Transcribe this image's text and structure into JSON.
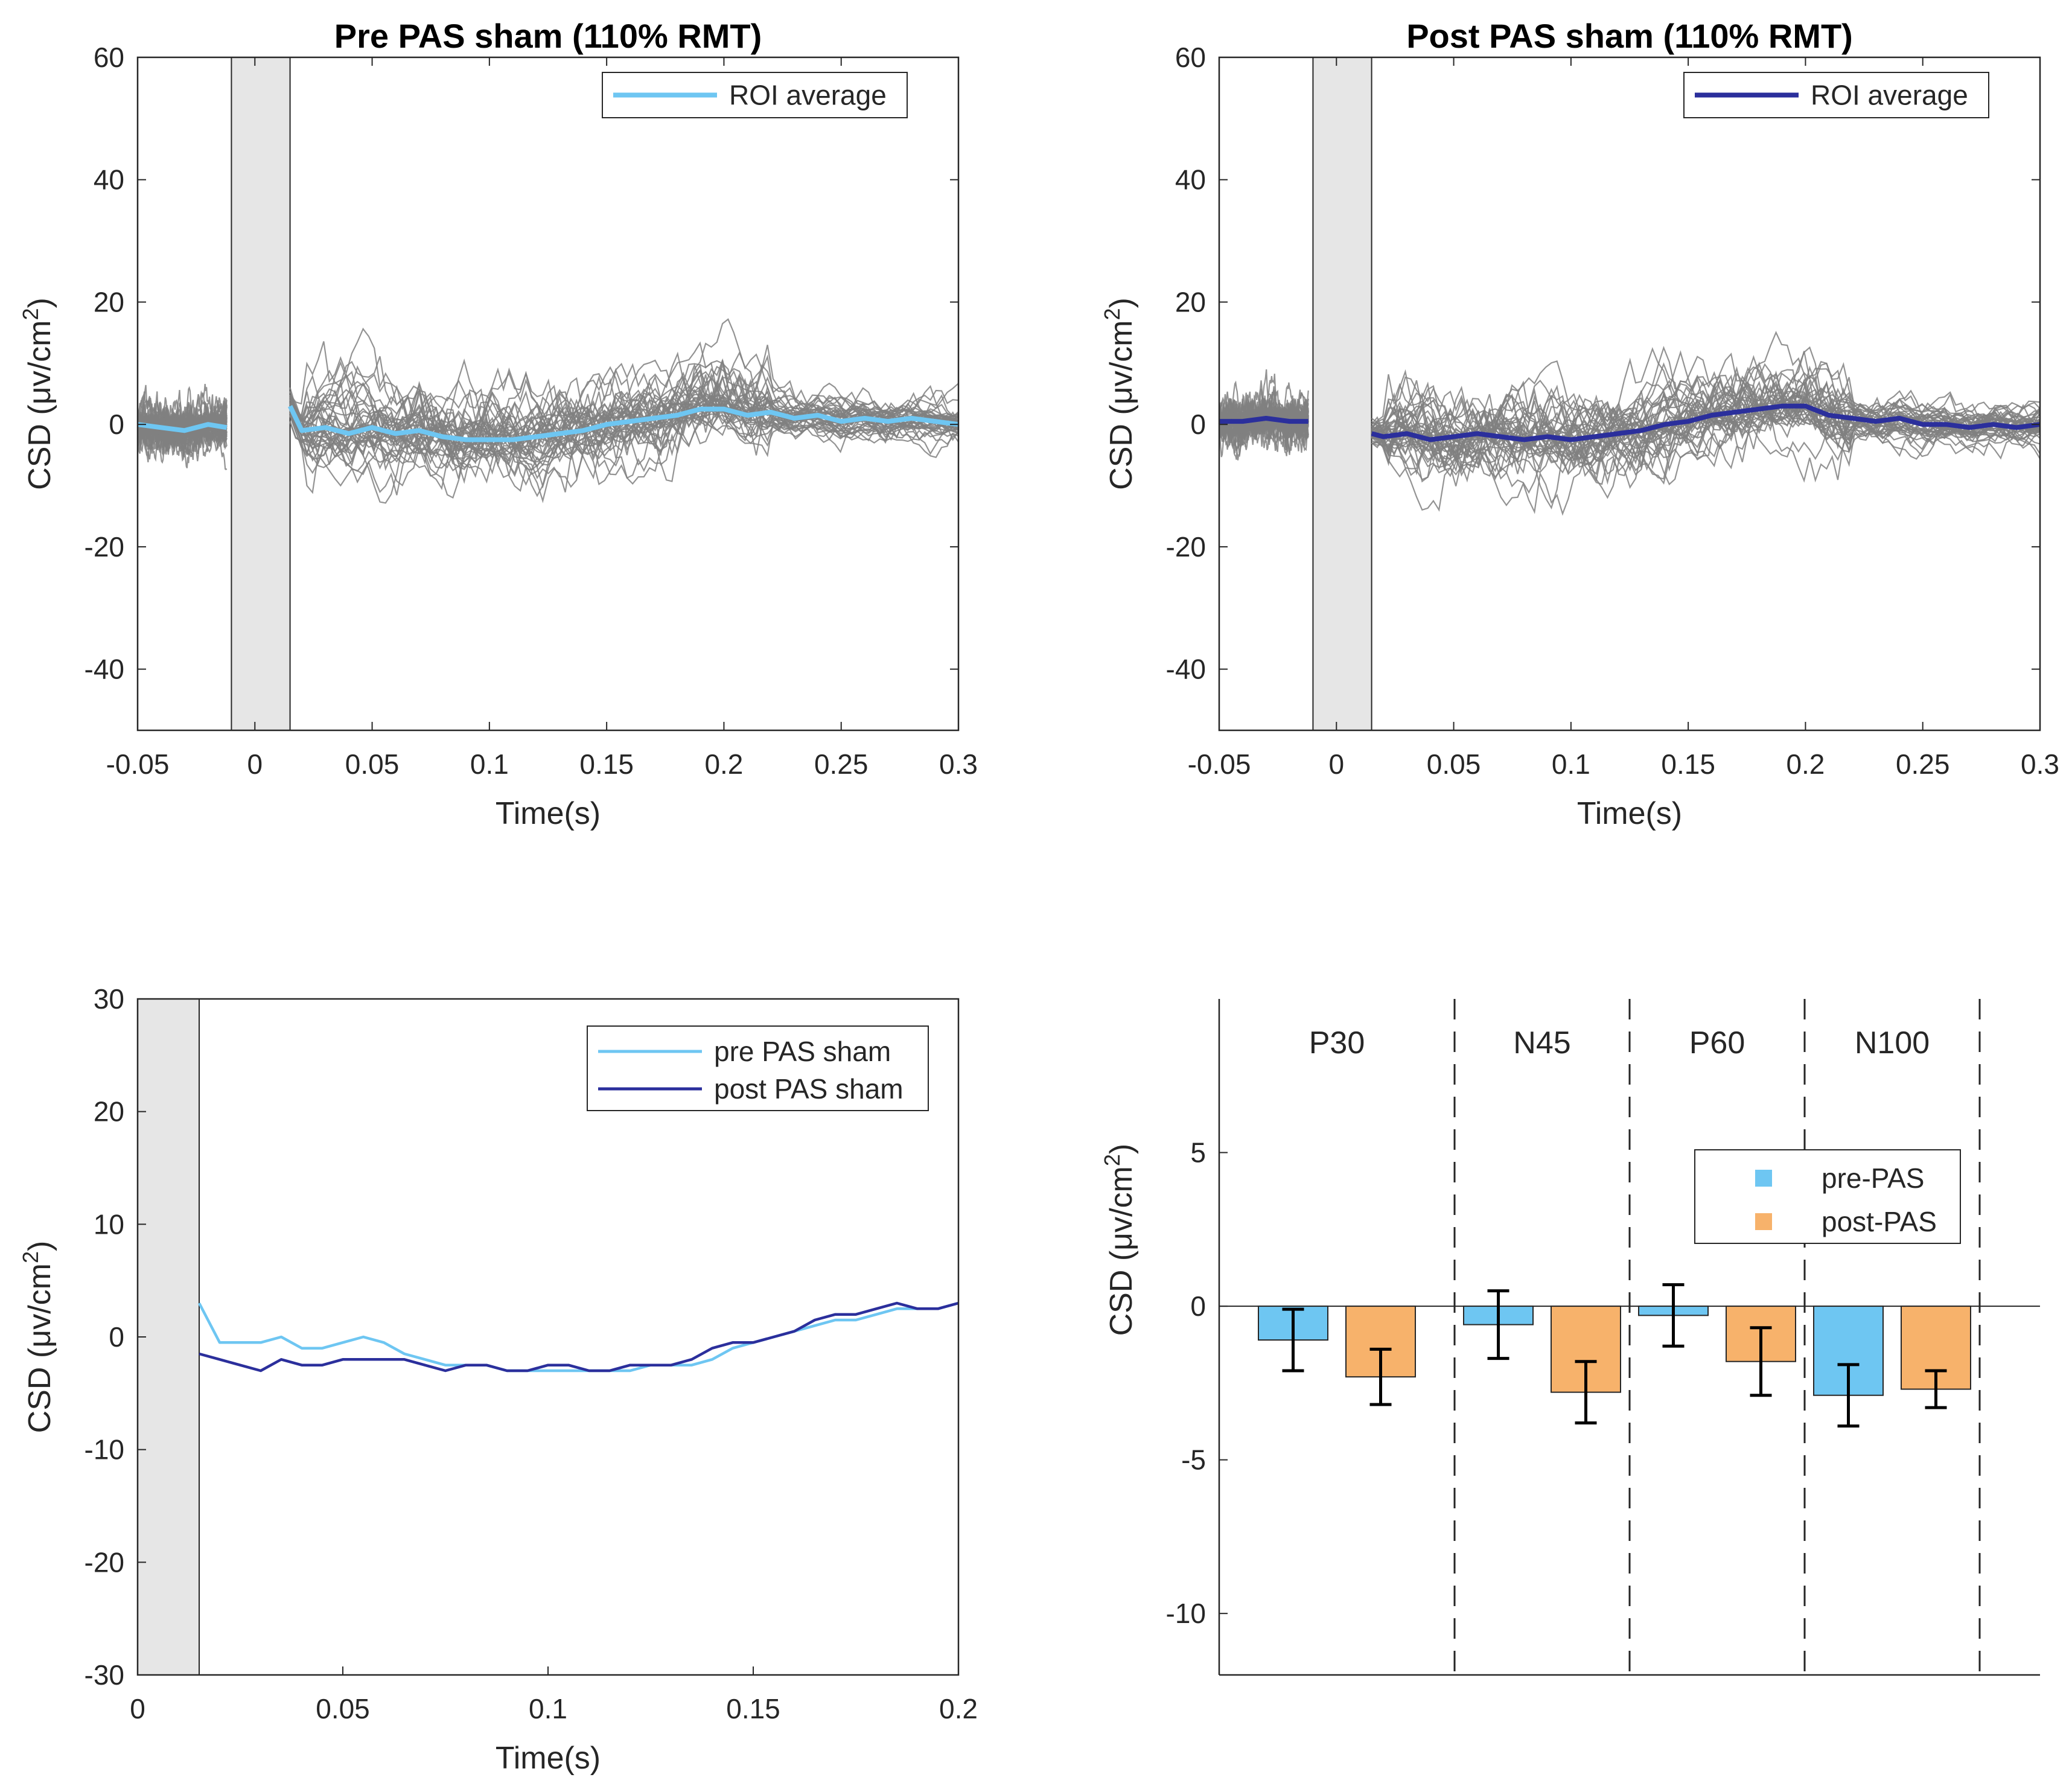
{
  "chart_data": [
    {
      "id": "pre",
      "type": "line",
      "title": "Pre PAS sham (110% RMT)",
      "xlabel": "Time(s)",
      "ylabel": "CSD (μv/cm",
      "ylabel_sup": "2",
      "ylabel_close": ")",
      "xlim": [
        -0.05,
        0.3
      ],
      "ylim": [
        -50,
        60
      ],
      "xticks": [
        -0.05,
        0,
        0.05,
        0.1,
        0.15,
        0.2,
        0.25,
        0.3
      ],
      "xtick_labels": [
        "-0.05",
        "0",
        "0.05",
        "0.1",
        "0.15",
        "0.2",
        "0.25",
        "0.3"
      ],
      "yticks": [
        -40,
        -20,
        0,
        20,
        40,
        60
      ],
      "ytick_labels": [
        "-40",
        "-20",
        "0",
        "20",
        "40",
        "60"
      ],
      "shaded_interval": [
        -0.01,
        0.015
      ],
      "legend": "ROI average",
      "legend_position": "top-right",
      "roi_color": "#6ec6f2",
      "channel_color": "#808080",
      "series": [
        {
          "name": "ROI average",
          "x": [
            -0.05,
            -0.04,
            -0.03,
            -0.02,
            -0.012,
            0.015,
            0.02,
            0.03,
            0.04,
            0.05,
            0.06,
            0.07,
            0.08,
            0.09,
            0.1,
            0.11,
            0.12,
            0.13,
            0.14,
            0.15,
            0.16,
            0.17,
            0.18,
            0.19,
            0.2,
            0.21,
            0.22,
            0.23,
            0.24,
            0.25,
            0.26,
            0.27,
            0.28,
            0.29,
            0.3
          ],
          "y": [
            0,
            -0.5,
            -1,
            0,
            -0.5,
            3,
            -1,
            -0.5,
            -1.5,
            -0.5,
            -1.5,
            -1,
            -2,
            -2.5,
            -2.5,
            -2.5,
            -2,
            -1.5,
            -1,
            0,
            0.5,
            1,
            1.5,
            2.5,
            2.5,
            1.5,
            2,
            1,
            1.5,
            0.5,
            1,
            0.5,
            1,
            0.5,
            0
          ]
        }
      ]
    },
    {
      "id": "post",
      "type": "line",
      "title": "Post PAS sham (110% RMT)",
      "xlabel": "Time(s)",
      "ylabel": "CSD (μv/cm",
      "ylabel_sup": "2",
      "ylabel_close": ")",
      "xlim": [
        -0.05,
        0.3
      ],
      "ylim": [
        -50,
        60
      ],
      "xticks": [
        -0.05,
        0,
        0.05,
        0.1,
        0.15,
        0.2,
        0.25,
        0.3
      ],
      "xtick_labels": [
        "-0.05",
        "0",
        "0.05",
        "0.1",
        "0.15",
        "0.2",
        "0.25",
        "0.3"
      ],
      "yticks": [
        -40,
        -20,
        0,
        20,
        40,
        60
      ],
      "ytick_labels": [
        "-40",
        "-20",
        "0",
        "20",
        "40",
        "60"
      ],
      "shaded_interval": [
        -0.01,
        0.015
      ],
      "legend": "ROI average",
      "legend_position": "top-right",
      "roi_color": "#2b2f9c",
      "channel_color": "#808080",
      "series": [
        {
          "name": "ROI average",
          "x": [
            -0.05,
            -0.04,
            -0.03,
            -0.02,
            -0.012,
            0.015,
            0.02,
            0.03,
            0.04,
            0.05,
            0.06,
            0.07,
            0.08,
            0.09,
            0.1,
            0.11,
            0.12,
            0.13,
            0.14,
            0.15,
            0.16,
            0.17,
            0.18,
            0.19,
            0.2,
            0.21,
            0.22,
            0.23,
            0.24,
            0.25,
            0.26,
            0.27,
            0.28,
            0.29,
            0.3
          ],
          "y": [
            0.5,
            0.5,
            1,
            0.5,
            0.5,
            -1.5,
            -2,
            -1.5,
            -2.5,
            -2,
            -1.5,
            -2,
            -2.5,
            -2,
            -2.5,
            -2,
            -1.5,
            -1,
            0,
            0.5,
            1.5,
            2,
            2.5,
            3,
            3,
            1.5,
            1,
            0.5,
            1,
            0,
            0,
            -0.5,
            0,
            -0.5,
            0
          ]
        }
      ]
    },
    {
      "id": "compare",
      "type": "line",
      "title": "",
      "xlabel": "Time(s)",
      "ylabel": "CSD (μv/cm",
      "ylabel_sup": "2",
      "ylabel_close": ")",
      "xlim": [
        0,
        0.2
      ],
      "ylim": [
        -30,
        30
      ],
      "xticks": [
        0,
        0.05,
        0.1,
        0.15,
        0.2
      ],
      "xtick_labels": [
        "0",
        "0.05",
        "0.1",
        "0.15",
        "0.2"
      ],
      "yticks": [
        -30,
        -20,
        -10,
        0,
        10,
        20,
        30
      ],
      "ytick_labels": [
        "-30",
        "-20",
        "-10",
        "0",
        "10",
        "20",
        "30"
      ],
      "shaded_interval": [
        0,
        0.015
      ],
      "legend_position": "top-right",
      "series": [
        {
          "name": "pre PAS sham",
          "color": "#6ec6f2",
          "x": [
            0.015,
            0.02,
            0.025,
            0.03,
            0.035,
            0.04,
            0.045,
            0.05,
            0.055,
            0.06,
            0.065,
            0.07,
            0.075,
            0.08,
            0.085,
            0.09,
            0.095,
            0.1,
            0.105,
            0.11,
            0.115,
            0.12,
            0.125,
            0.13,
            0.135,
            0.14,
            0.145,
            0.15,
            0.155,
            0.16,
            0.165,
            0.17,
            0.175,
            0.18,
            0.185,
            0.19,
            0.195,
            0.2
          ],
          "y": [
            3,
            -0.5,
            -0.5,
            -0.5,
            0,
            -1,
            -1,
            -0.5,
            0,
            -0.5,
            -1.5,
            -2,
            -2.5,
            -2.5,
            -2.5,
            -3,
            -3,
            -3,
            -3,
            -3,
            -3,
            -3,
            -2.5,
            -2.5,
            -2.5,
            -2,
            -1,
            -0.5,
            0,
            0.5,
            1,
            1.5,
            1.5,
            2,
            2.5,
            2.5,
            2.5,
            3
          ]
        },
        {
          "name": "post PAS sham",
          "color": "#2b2f9c",
          "x": [
            0.015,
            0.02,
            0.025,
            0.03,
            0.035,
            0.04,
            0.045,
            0.05,
            0.055,
            0.06,
            0.065,
            0.07,
            0.075,
            0.08,
            0.085,
            0.09,
            0.095,
            0.1,
            0.105,
            0.11,
            0.115,
            0.12,
            0.125,
            0.13,
            0.135,
            0.14,
            0.145,
            0.15,
            0.155,
            0.16,
            0.165,
            0.17,
            0.175,
            0.18,
            0.185,
            0.19,
            0.195,
            0.2
          ],
          "y": [
            -1.5,
            -2,
            -2.5,
            -3,
            -2,
            -2.5,
            -2.5,
            -2,
            -2,
            -2,
            -2,
            -2.5,
            -3,
            -2.5,
            -2.5,
            -3,
            -3,
            -2.5,
            -2.5,
            -3,
            -3,
            -2.5,
            -2.5,
            -2.5,
            -2,
            -1,
            -0.5,
            -0.5,
            0,
            0.5,
            1.5,
            2,
            2,
            2.5,
            3,
            2.5,
            2.5,
            3
          ]
        }
      ]
    },
    {
      "id": "bars",
      "type": "bar",
      "title": "",
      "xlabel": "",
      "ylabel": "CSD (μv/cm",
      "ylabel_sup": "2",
      "ylabel_close": ")",
      "ylim": [
        -12,
        10
      ],
      "yticks": [
        -10,
        -5,
        0,
        5
      ],
      "ytick_labels": [
        "-10",
        "-5",
        "0",
        "5"
      ],
      "categories": [
        "P30",
        "N45",
        "P60",
        "N100"
      ],
      "legend_position": "upper-right",
      "series": [
        {
          "name": "pre-PAS",
          "color": "#6ec6f2",
          "values": [
            -1.1,
            -0.6,
            -0.3,
            -2.9
          ],
          "err": [
            1.0,
            1.1,
            1.0,
            1.0
          ]
        },
        {
          "name": "post-PAS",
          "color": "#f7b26b",
          "values": [
            -2.3,
            -2.8,
            -1.8,
            -2.7
          ],
          "err": [
            0.9,
            1.0,
            1.1,
            0.6
          ]
        }
      ]
    }
  ]
}
